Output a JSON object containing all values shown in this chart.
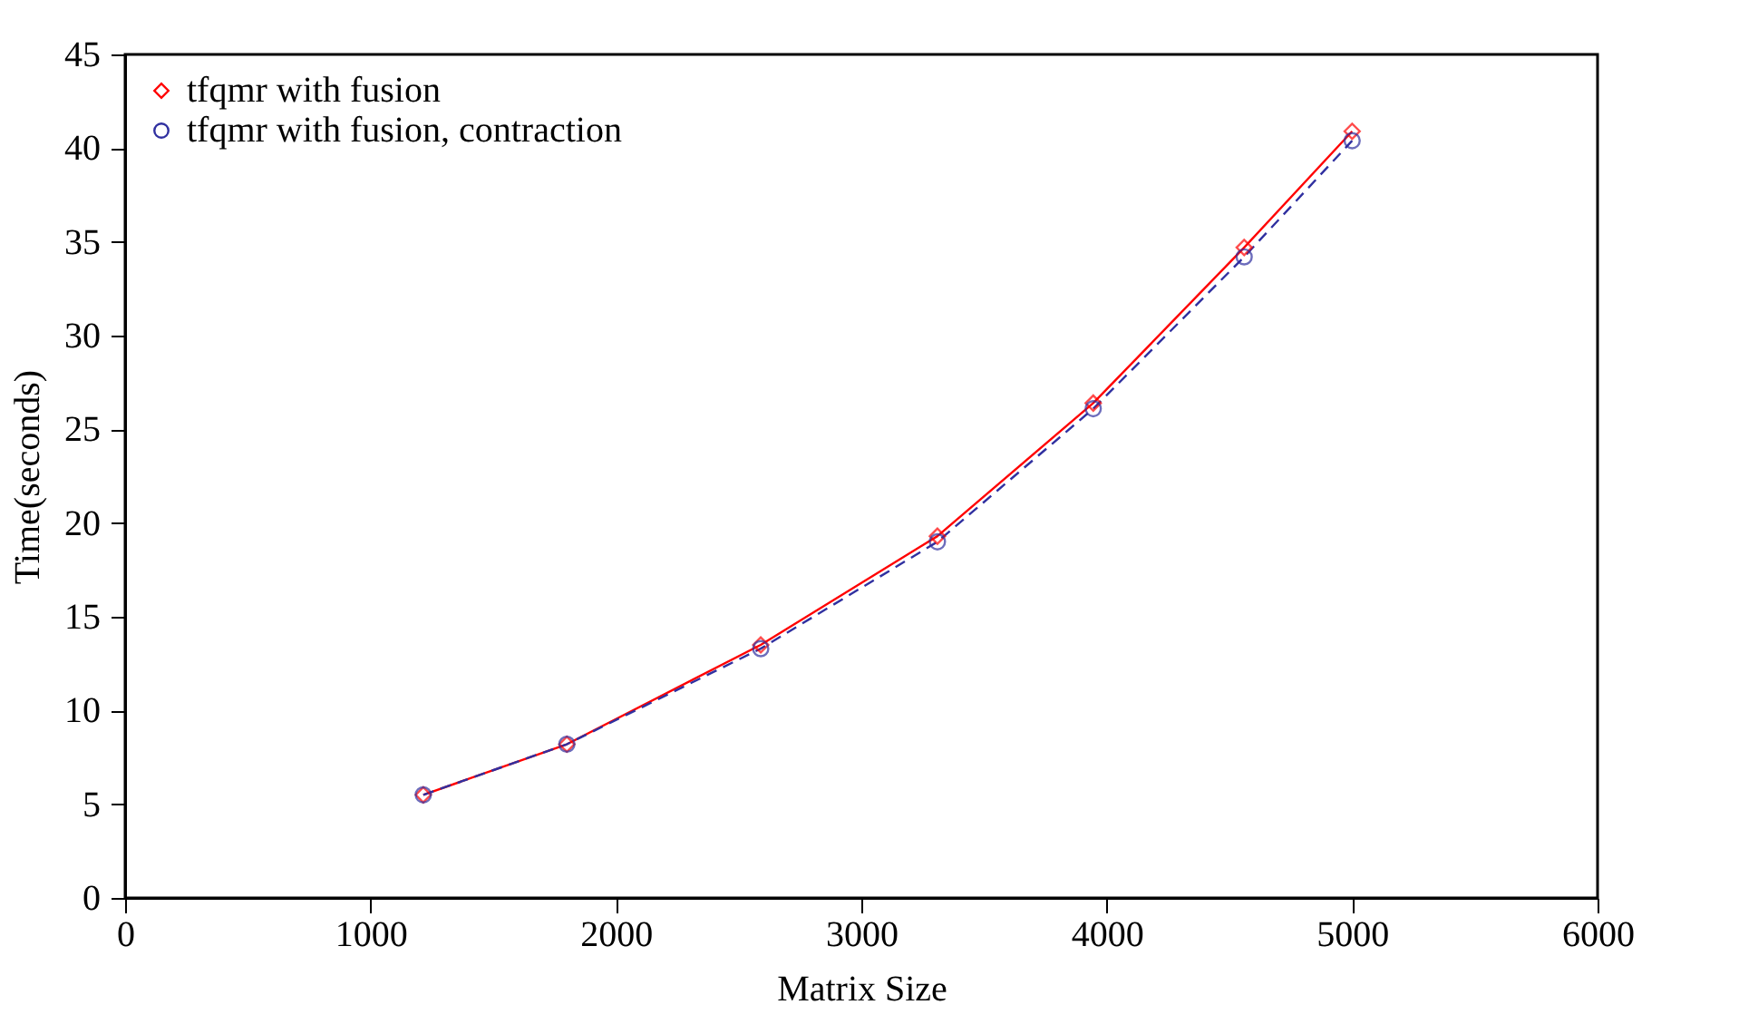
{
  "chart_data": {
    "type": "line",
    "xlabel": "Matrix Size",
    "ylabel": "Time(seconds)",
    "x": [
      1215,
      1800,
      2590,
      3310,
      3945,
      4560,
      5000
    ],
    "series": [
      {
        "name": "tfqmr with fusion",
        "color": "#ff0000",
        "marker": "diamond",
        "line_style": "solid",
        "values": [
          5.5,
          8.2,
          13.5,
          19.3,
          26.4,
          34.7,
          40.9
        ]
      },
      {
        "name": "tfqmr with fusion, contraction",
        "color": "#3030a0",
        "marker": "circle",
        "line_style": "dashed",
        "values": [
          5.5,
          8.2,
          13.3,
          19.0,
          26.1,
          34.2,
          40.4
        ]
      }
    ],
    "xlim": [
      0,
      6000
    ],
    "xticks": [
      0,
      1000,
      2000,
      3000,
      4000,
      5000,
      6000
    ],
    "ylim": [
      0,
      45
    ],
    "yticks": [
      0,
      5,
      10,
      15,
      20,
      25,
      30,
      35,
      40,
      45
    ],
    "grid": false,
    "legend": "top left"
  }
}
